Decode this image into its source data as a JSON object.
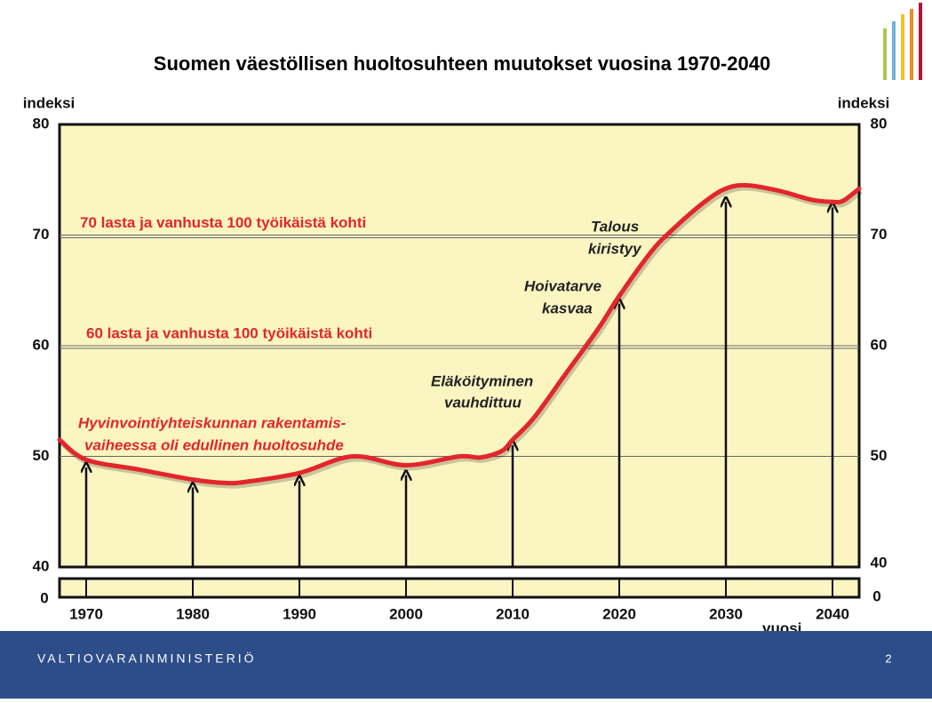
{
  "chart_data": {
    "type": "line",
    "title": "Suomen väestöllisen huoltosuhteen muutokset vuosina 1970-2040",
    "y_label": "indeksi",
    "y2_label": "indeksi",
    "x_label": "vuosi",
    "xlim": [
      1967.5,
      2042.5
    ],
    "xticks": [
      1970,
      1980,
      1990,
      2000,
      2010,
      2020,
      2030,
      2040
    ],
    "ylim": [
      40,
      80
    ],
    "yticks": [
      40,
      50,
      60,
      70,
      80
    ],
    "y2lim": [
      40,
      80
    ],
    "y2ticks": [
      40,
      50,
      60,
      70,
      80
    ],
    "axis_break_base": 0,
    "grid": true,
    "series": [
      {
        "color": "#e3262b",
        "x": [
          1967.5,
          1970,
          1975,
          1980,
          1983,
          1985,
          1990,
          1995,
          2000,
          2005,
          2007,
          2009,
          2010,
          2012,
          2015,
          2018,
          2020,
          2023,
          2025,
          2028,
          2030,
          2032,
          2035,
          2038,
          2040,
          2041,
          2042.5
        ],
        "values": [
          51.5,
          49.7,
          48.8,
          47.9,
          47.6,
          47.7,
          48.5,
          50.0,
          49.2,
          50.0,
          49.9,
          50.5,
          51.5,
          53.5,
          57.5,
          61.5,
          64.5,
          68.5,
          70.5,
          73.0,
          74.2,
          74.5,
          74.0,
          73.2,
          73.0,
          73.1,
          74.2
        ]
      },
      {
        "color": "#111111",
        "style": "arrow",
        "x": [
          1970,
          1980,
          1990,
          2000,
          2010,
          2020,
          2030,
          2040
        ],
        "values": [
          49.0,
          47.2,
          47.8,
          48.3,
          51.0,
          63.8,
          73.0,
          72.5
        ]
      }
    ],
    "hlines": [
      {
        "value": 70,
        "label": "70 lasta ja vanhusta 100 työikäistä kohti"
      },
      {
        "value": 60,
        "label": "60 lasta ja vanhusta 100 työikäistä kohti"
      }
    ],
    "annotations": [
      {
        "lines": [
          "Talous",
          "kiristyy"
        ]
      },
      {
        "lines": [
          "Hoivatarve",
          "kasvaa"
        ]
      },
      {
        "lines": [
          "Eläköityminen",
          "vauhdittuu"
        ]
      },
      {
        "lines": [
          "Hyvinvointiyhteiskunnan rakentamis-",
          "vaiheessa oli edullinen huoltosuhde"
        ]
      }
    ]
  },
  "footer": {
    "organization": "VALTIOVARAINMINISTERIÖ",
    "page_number": "2"
  }
}
